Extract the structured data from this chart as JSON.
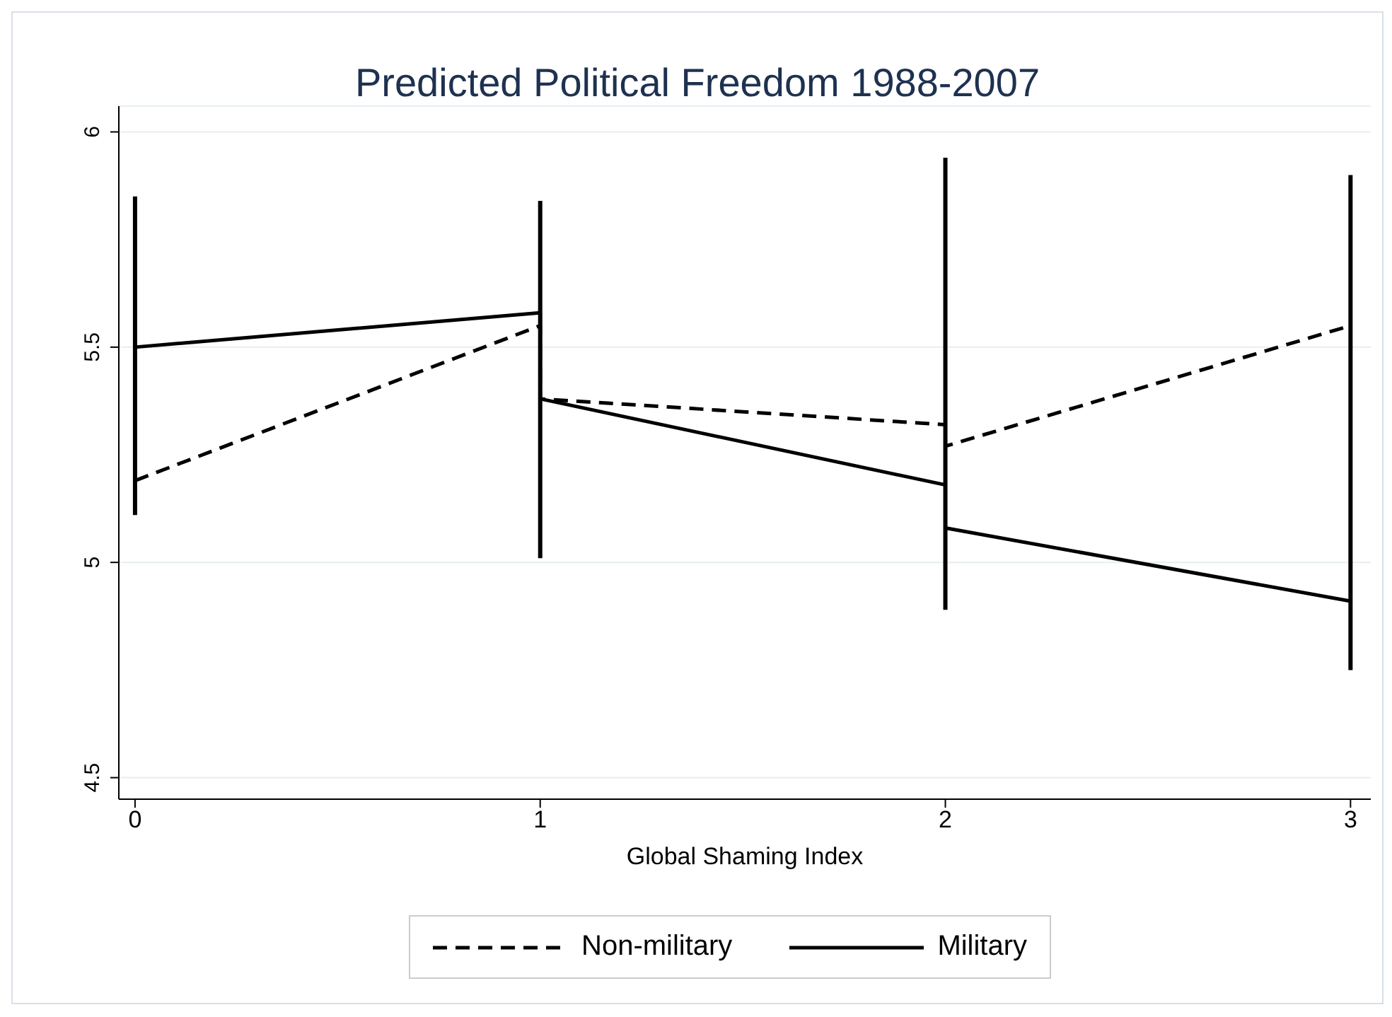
{
  "chart_data": {
    "type": "line",
    "title": "Predicted Political Freedom 1988-2007",
    "xlabel": "Global Shaming Index",
    "series": [
      {
        "name": "Non-military",
        "color": "#000000",
        "line_style": "dashed",
        "x": [
          0,
          1,
          1,
          2,
          2,
          3
        ],
        "values": [
          5.19,
          5.55,
          5.38,
          5.32,
          5.27,
          5.55
        ]
      },
      {
        "name": "Military",
        "color": "#000000",
        "line_style": "solid",
        "x": [
          0,
          1,
          1,
          2,
          2,
          3
        ],
        "values": [
          5.5,
          5.58,
          5.38,
          5.18,
          5.08,
          4.91
        ]
      },
      {
        "type": "bar",
        "color": "#000000",
        "x": [
          0,
          1,
          2,
          3
        ],
        "base": [
          5.11,
          5.01,
          4.89,
          4.75
        ],
        "values": [
          0.74,
          0.83,
          1.05,
          1.15
        ]
      }
    ],
    "xlim": [
      -0.04,
      3.05
    ],
    "xticks": [
      0,
      1,
      2,
      3
    ],
    "ylim": [
      4.45,
      6.06
    ],
    "yticks": [
      4.5,
      5,
      5.5,
      6
    ],
    "grid": "y",
    "legend": "bottom",
    "marker": "none"
  }
}
